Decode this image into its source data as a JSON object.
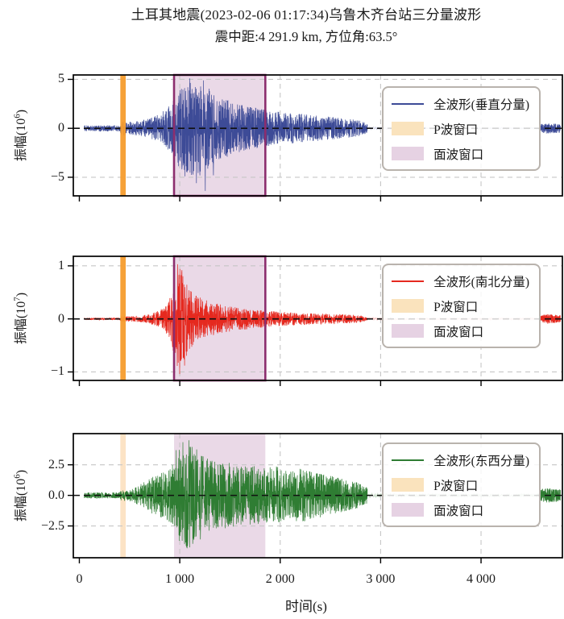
{
  "figure": {
    "title": "土耳其地震(2023-02-06 01:17:34)乌鲁木齐台站三分量波形",
    "subtitle": "震中距:4 291.9 km, 方位角:63.5°",
    "background": "#ffffff"
  },
  "colors": {
    "axis": "#000000",
    "text": "#1a1a1a",
    "grid": "#c6c6c6",
    "zero_line": "#111111",
    "p_window_strong": "#f59c2d",
    "p_window_pale": "rgba(245,156,45,0.28)",
    "surface_window_fill": "rgba(158,84,147,0.22)",
    "surface_window_edge": "#8c2e6e",
    "legend_border": "#b9b3ad",
    "legend_p_patch": "#fae3bd",
    "legend_surface_patch": "#e6d2e3"
  },
  "chart_data": {
    "type": "line",
    "title": "土耳其地震(2023-02-06 01:17:34)乌鲁木齐台站三分量波形",
    "subtitle": "震中距:4 291.9 km, 方位角:63.5°",
    "xlabel": "时间(s)",
    "xlim": [
      -60,
      4810
    ],
    "x_ticks": [
      0,
      1000,
      2000,
      3000,
      4000
    ],
    "x_tick_labels": [
      "0",
      "1 000",
      "2 000",
      "3 000",
      "4 000"
    ],
    "grid": true,
    "legend_position": "upper right",
    "windows": {
      "p_wave": {
        "label": "P波窗口",
        "start": 408,
        "end": 462
      },
      "surface_wave": {
        "label": "面波窗口",
        "start": 943,
        "end": 1852
      }
    },
    "panels": [
      {
        "id": "vertical",
        "series_label": "全波形(垂直分量)",
        "line_color": "#3d4b97",
        "ylabel_prefix": "振幅(10",
        "ylabel_exp": "6",
        "ylabel_suffix": ")",
        "ylim": [
          -6.9,
          5.45
        ],
        "y_ticks": [
          5,
          0,
          -5
        ],
        "y_tick_labels": [
          "5",
          "0",
          "−5"
        ],
        "strong_window_style": true,
        "envelope": [
          [
            50,
            0.3
          ],
          [
            350,
            0.32
          ],
          [
            405,
            0.3
          ],
          [
            415,
            0.85
          ],
          [
            470,
            0.65
          ],
          [
            600,
            0.75
          ],
          [
            720,
            1.1
          ],
          [
            820,
            1.6
          ],
          [
            900,
            2.4
          ],
          [
            950,
            3.4
          ],
          [
            1000,
            4.1
          ],
          [
            1080,
            4.7
          ],
          [
            1180,
            5.0
          ],
          [
            1260,
            4.4
          ],
          [
            1350,
            3.4
          ],
          [
            1500,
            2.8
          ],
          [
            1650,
            2.3
          ],
          [
            1800,
            2.0
          ],
          [
            1900,
            1.8
          ],
          [
            2050,
            1.6
          ],
          [
            2250,
            1.45
          ],
          [
            2450,
            1.25
          ],
          [
            2650,
            1.0
          ],
          [
            2800,
            0.8
          ],
          [
            2865,
            0.5
          ],
          [
            2875,
            0.18
          ],
          [
            3300,
            0.1
          ],
          [
            4000,
            0.09
          ],
          [
            4575,
            0.1
          ],
          [
            4600,
            0.45
          ],
          [
            4660,
            0.55
          ],
          [
            4720,
            0.5
          ],
          [
            4790,
            0.45
          ]
        ],
        "spikes": [
          [
            1100,
            5.1
          ],
          [
            1235,
            4.9
          ],
          [
            1255,
            -6.4
          ],
          [
            1165,
            -5.6
          ],
          [
            1335,
            -4.8
          ],
          [
            1050,
            -4.9
          ]
        ]
      },
      {
        "id": "north-south",
        "series_label": "全波形(南北分量)",
        "line_color": "#e5291f",
        "ylabel_prefix": "振幅(10",
        "ylabel_exp": "7",
        "ylabel_suffix": ")",
        "ylim": [
          -1.16,
          1.18
        ],
        "y_ticks": [
          1,
          0,
          -1
        ],
        "y_tick_labels": [
          "1",
          "0",
          "−1"
        ],
        "strong_window_style": true,
        "envelope": [
          [
            50,
            0.02
          ],
          [
            405,
            0.02
          ],
          [
            415,
            0.06
          ],
          [
            470,
            0.05
          ],
          [
            600,
            0.06
          ],
          [
            700,
            0.09
          ],
          [
            800,
            0.16
          ],
          [
            860,
            0.26
          ],
          [
            910,
            0.42
          ],
          [
            945,
            0.7
          ],
          [
            975,
            1.0
          ],
          [
            1005,
            1.02
          ],
          [
            1040,
            0.85
          ],
          [
            1090,
            0.6
          ],
          [
            1150,
            0.45
          ],
          [
            1250,
            0.36
          ],
          [
            1350,
            0.3
          ],
          [
            1500,
            0.24
          ],
          [
            1650,
            0.2
          ],
          [
            1800,
            0.17
          ],
          [
            1950,
            0.14
          ],
          [
            2150,
            0.12
          ],
          [
            2400,
            0.1
          ],
          [
            2650,
            0.085
          ],
          [
            2800,
            0.07
          ],
          [
            2870,
            0.025
          ],
          [
            3300,
            0.018
          ],
          [
            4575,
            0.02
          ],
          [
            4600,
            0.07
          ],
          [
            4660,
            0.09
          ],
          [
            4720,
            0.08
          ],
          [
            4790,
            0.07
          ]
        ],
        "spikes": [
          [
            980,
            1.03
          ],
          [
            998,
            -1.04
          ],
          [
            1022,
            0.92
          ],
          [
            1048,
            -0.88
          ]
        ]
      },
      {
        "id": "east-west",
        "series_label": "全波形(东西分量)",
        "line_color": "#2f7d33",
        "ylabel_prefix": "振幅(10",
        "ylabel_exp": "6",
        "ylabel_suffix": ")",
        "ylim": [
          -5.1,
          5.05
        ],
        "y_ticks": [
          2.5,
          0,
          -2.5
        ],
        "y_tick_labels": [
          "2.5",
          "0.0",
          "−2.5"
        ],
        "strong_window_style": false,
        "envelope": [
          [
            50,
            0.25
          ],
          [
            405,
            0.25
          ],
          [
            415,
            0.45
          ],
          [
            470,
            0.4
          ],
          [
            550,
            0.6
          ],
          [
            640,
            1.1
          ],
          [
            720,
            1.5
          ],
          [
            800,
            1.8
          ],
          [
            880,
            2.1
          ],
          [
            950,
            2.7
          ],
          [
            1000,
            3.9
          ],
          [
            1060,
            4.5
          ],
          [
            1120,
            4.2
          ],
          [
            1200,
            3.5
          ],
          [
            1300,
            2.9
          ],
          [
            1400,
            2.6
          ],
          [
            1500,
            2.8
          ],
          [
            1600,
            2.4
          ],
          [
            1700,
            2.6
          ],
          [
            1820,
            2.2
          ],
          [
            1950,
            2.4
          ],
          [
            2080,
            2.0
          ],
          [
            2200,
            2.2
          ],
          [
            2330,
            1.9
          ],
          [
            2470,
            1.7
          ],
          [
            2600,
            1.4
          ],
          [
            2750,
            1.1
          ],
          [
            2865,
            0.7
          ],
          [
            2875,
            0.22
          ],
          [
            3300,
            0.13
          ],
          [
            4575,
            0.14
          ],
          [
            4600,
            0.5
          ],
          [
            4660,
            0.6
          ],
          [
            4720,
            0.55
          ],
          [
            4790,
            0.5
          ]
        ],
        "spikes": [
          [
            1030,
            4.35
          ],
          [
            1092,
            4.5
          ],
          [
            1058,
            -3.85
          ],
          [
            1205,
            -3.6
          ],
          [
            965,
            3.7
          ],
          [
            1150,
            -3.4
          ]
        ]
      }
    ],
    "trace_segments": [
      {
        "t0": 50,
        "t1": 2868,
        "points": 1150,
        "opacity": 1
      },
      {
        "t0": 2868,
        "t1": 4578,
        "points": 300,
        "opacity": 0.28
      },
      {
        "t0": 4578,
        "t1": 4790,
        "points": 140,
        "opacity": 1
      }
    ]
  }
}
